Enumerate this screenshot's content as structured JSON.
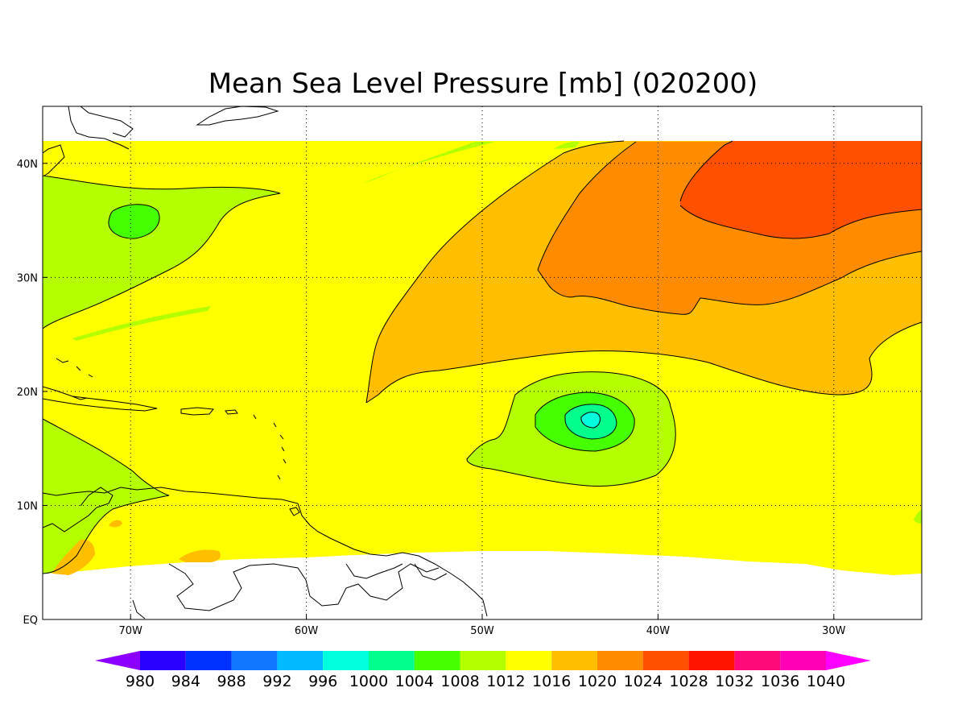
{
  "title": "Mean Sea Level Pressure [mb] (020200)",
  "chart_data": {
    "type": "heatmap",
    "title": "Mean Sea Level Pressure [mb] (020200)",
    "xlim": [
      -75,
      -25
    ],
    "ylim": [
      0,
      45
    ],
    "x_ticks": [
      {
        "value": -70,
        "label": "70W"
      },
      {
        "value": -60,
        "label": "60W"
      },
      {
        "value": -50,
        "label": "50W"
      },
      {
        "value": -40,
        "label": "40W"
      },
      {
        "value": -30,
        "label": "30W"
      }
    ],
    "y_ticks": [
      {
        "value": 0,
        "label": "EQ"
      },
      {
        "value": 10,
        "label": "10N"
      },
      {
        "value": 20,
        "label": "20N"
      },
      {
        "value": 30,
        "label": "30N"
      },
      {
        "value": 40,
        "label": "40N"
      }
    ],
    "grid": true,
    "colorbar": {
      "placement": "bottom",
      "levels": [
        "980",
        "984",
        "988",
        "992",
        "996",
        "1000",
        "1004",
        "1008",
        "1012",
        "1016",
        "1020",
        "1024",
        "1028",
        "1032",
        "1036",
        "1040"
      ],
      "colors": [
        "#8c00ff",
        "#2a00ff",
        "#0032ff",
        "#0f78ff",
        "#00b9ff",
        "#00ffdc",
        "#00ff8c",
        "#46ff00",
        "#b4ff00",
        "#ffff00",
        "#ffbe00",
        "#ff8c00",
        "#ff5000",
        "#ff1400",
        "#ff0a78",
        "#ff00b4",
        "#ff00ff"
      ]
    },
    "features": [
      {
        "name": "high-pressure-center",
        "level": "1024-1028",
        "lon": -33,
        "lat": 39
      },
      {
        "name": "low-pressure-center",
        "level": "1000-1004",
        "lon": -44,
        "lat": 17.5
      },
      {
        "name": "minor-low-pressure-center",
        "level": "1004-1008",
        "lon": -69,
        "lat": 35
      }
    ]
  }
}
